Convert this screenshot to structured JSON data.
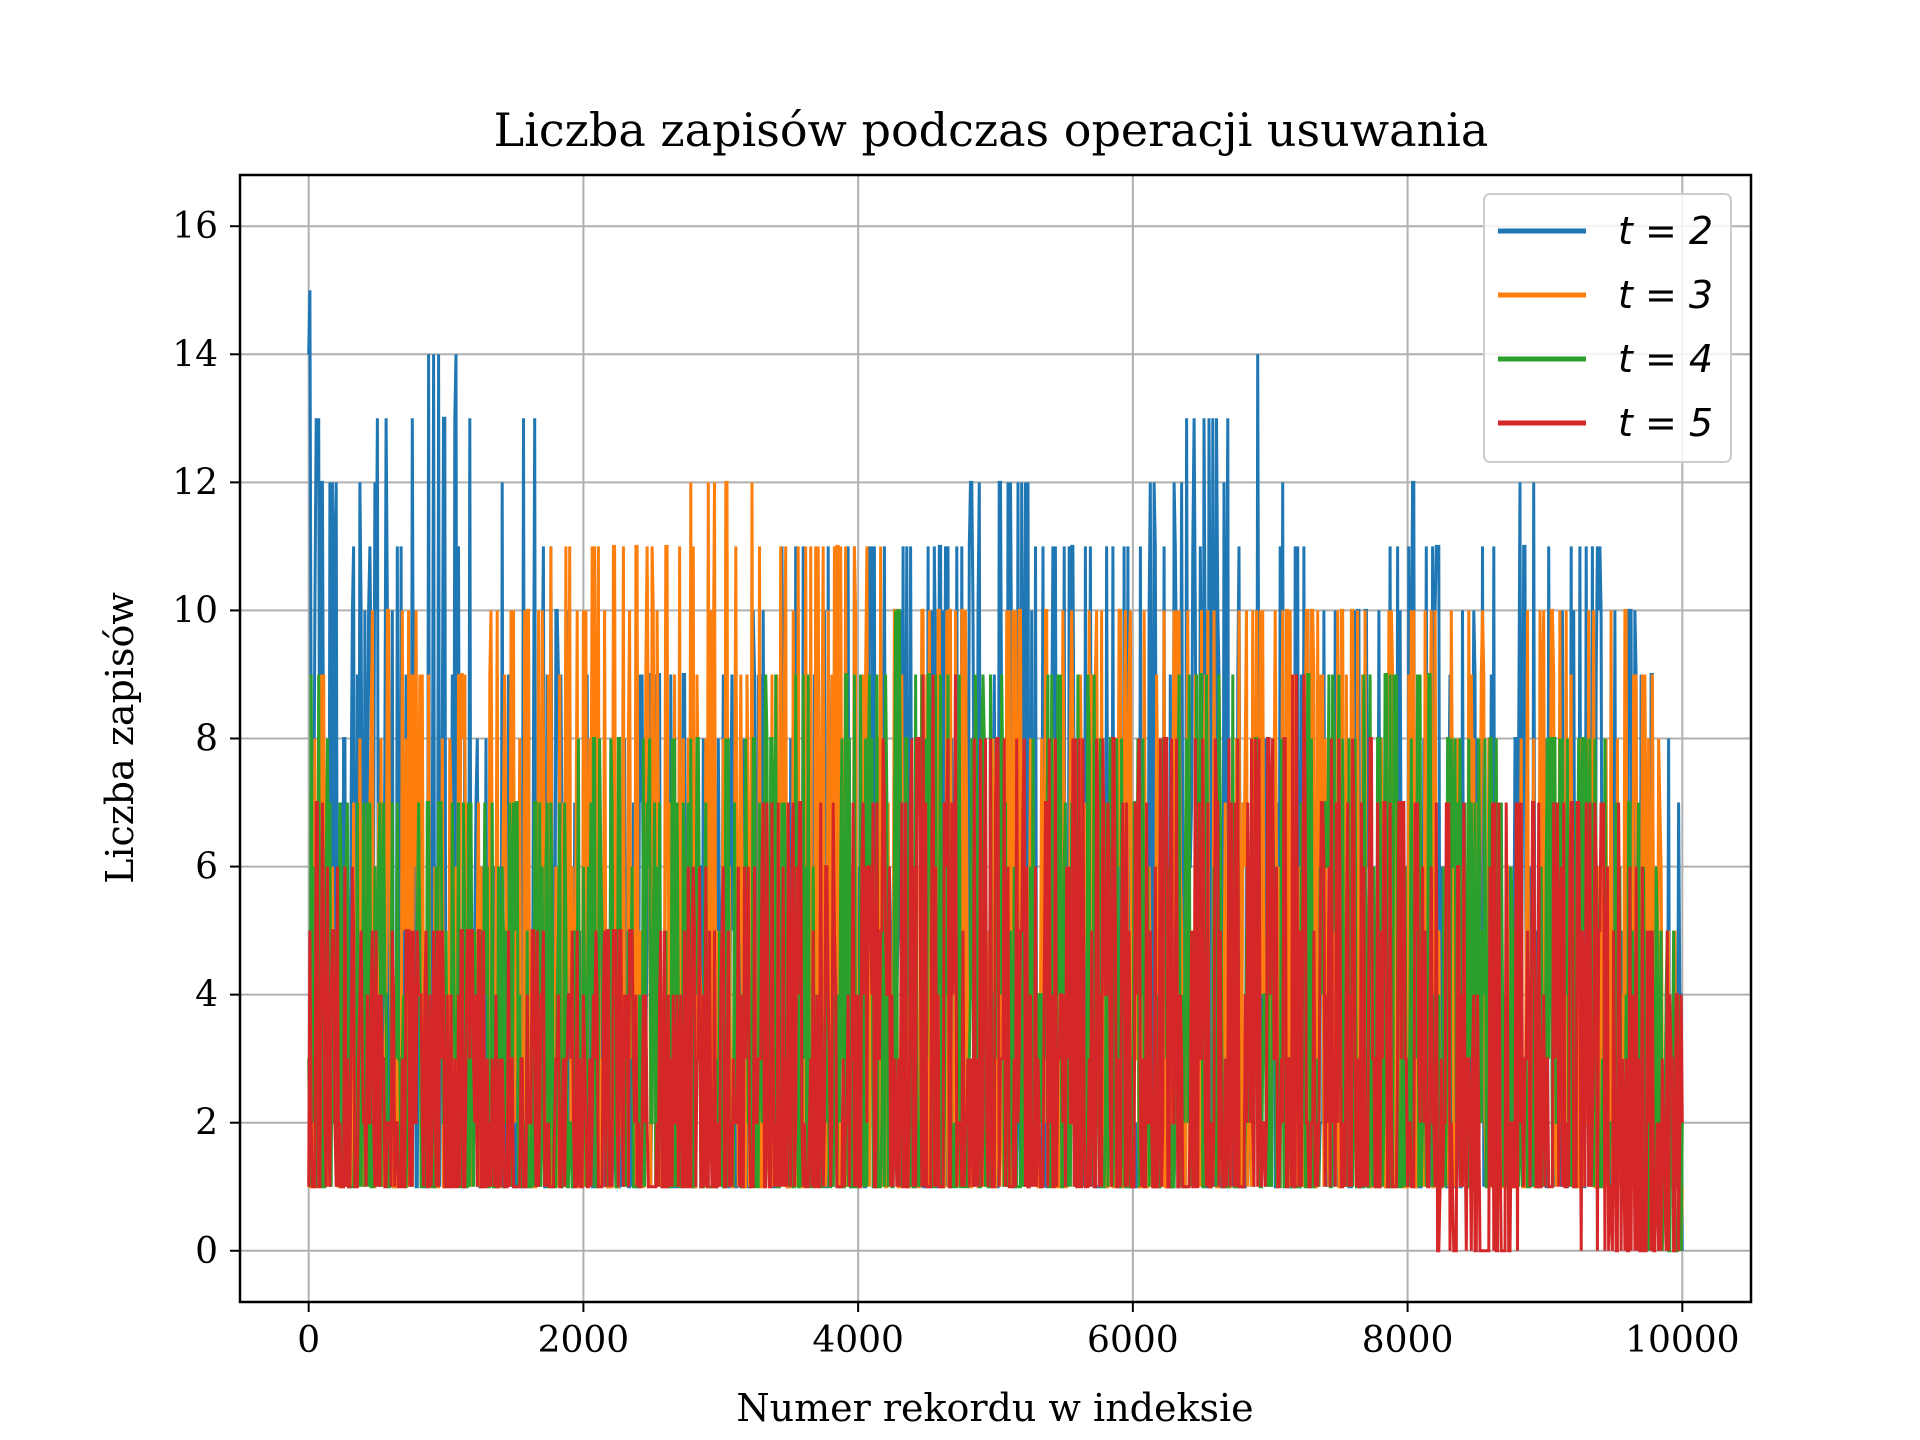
{
  "chart_data": {
    "type": "line",
    "title": "Liczba zapisów podczas operacji usuwania",
    "xlabel": "Numer rekordu w indeksie",
    "ylabel": "Liczba zapisów",
    "xlim": [
      -500,
      10500
    ],
    "ylim": [
      -0.8,
      16.8
    ],
    "xticks": [
      0,
      2000,
      4000,
      6000,
      8000,
      10000
    ],
    "xtick_labels": [
      "0",
      "2000",
      "4000",
      "6000",
      "8000",
      "10000"
    ],
    "yticks": [
      0,
      2,
      4,
      6,
      8,
      10,
      12,
      14,
      16
    ],
    "ytick_labels": [
      "0",
      "2",
      "4",
      "6",
      "8",
      "10",
      "12",
      "14",
      "16"
    ],
    "grid": true,
    "legend_position": "upper right",
    "legend": [
      "t = 2",
      "t = 3",
      "t = 4",
      "t = 5"
    ],
    "series": [
      {
        "name": "t = 2",
        "color": "#1f77b4",
        "x": [
          0,
          20,
          60,
          200,
          400,
          600,
          800,
          900,
          1000,
          1100,
          1300,
          1600,
          2000,
          2500,
          3000,
          3500,
          4000,
          4500,
          5000,
          5500,
          6000,
          6500,
          6900,
          7300,
          7800,
          8000,
          8400,
          8800,
          9200,
          9600,
          9900,
          10000
        ],
        "min": [
          1,
          1,
          1,
          1,
          1,
          1,
          1,
          1,
          1,
          1,
          1,
          1,
          1,
          1,
          1,
          1,
          1,
          1,
          1,
          1,
          1,
          1,
          1,
          1,
          1,
          1,
          1,
          1,
          1,
          1,
          1,
          0
        ],
        "max": [
          14,
          16,
          13,
          12,
          12,
          13,
          13,
          14,
          13,
          14,
          12,
          13,
          9,
          9,
          9,
          11,
          11,
          11,
          12,
          11,
          11,
          13,
          14,
          10,
          10,
          12,
          10,
          12,
          11,
          10,
          8,
          6
        ]
      },
      {
        "name": "t = 3",
        "color": "#ff7f0e",
        "x": [
          0,
          20,
          100,
          300,
          600,
          1000,
          1500,
          2000,
          2500,
          3000,
          3500,
          4000,
          4500,
          5000,
          5500,
          6000,
          6500,
          7000,
          7500,
          8000,
          8500,
          9000,
          9500,
          9900,
          10000
        ],
        "min": [
          1,
          1,
          1,
          1,
          1,
          1,
          1,
          1,
          1,
          1,
          1,
          1,
          1,
          1,
          1,
          1,
          1,
          1,
          1,
          1,
          1,
          1,
          1,
          1,
          0
        ],
        "max": [
          10,
          12,
          9,
          9,
          10,
          9,
          10,
          11,
          11,
          12,
          11,
          11,
          10,
          10,
          10,
          10,
          10,
          10,
          10,
          10,
          10,
          10,
          10,
          8,
          4
        ]
      },
      {
        "name": "t = 4",
        "color": "#2ca02c",
        "x": [
          0,
          20,
          200,
          500,
          1000,
          1500,
          2000,
          2500,
          3000,
          3500,
          4000,
          4300,
          4600,
          5000,
          5500,
          6000,
          6500,
          7000,
          7500,
          8000,
          8500,
          9000,
          9500,
          10000
        ],
        "min": [
          1,
          1,
          1,
          1,
          1,
          1,
          1,
          1,
          1,
          1,
          1,
          1,
          1,
          1,
          1,
          1,
          1,
          1,
          1,
          1,
          1,
          1,
          1,
          0
        ],
        "max": [
          7,
          9,
          8,
          7,
          7,
          7,
          8,
          8,
          8,
          9,
          9,
          10,
          9,
          9,
          9,
          8,
          9,
          8,
          9,
          9,
          8,
          8,
          8,
          4
        ]
      },
      {
        "name": "t = 5",
        "color": "#d62728",
        "x": [
          0,
          20,
          200,
          500,
          1000,
          1500,
          2000,
          2500,
          3000,
          3500,
          4000,
          4600,
          5000,
          5500,
          6000,
          6500,
          7000,
          7250,
          7500,
          8000,
          8400,
          8700,
          9000,
          9500,
          9800,
          10000
        ],
        "min": [
          1,
          1,
          1,
          1,
          1,
          1,
          1,
          1,
          1,
          1,
          1,
          1,
          1,
          1,
          1,
          1,
          1,
          1,
          1,
          1,
          0,
          0,
          1,
          0,
          0,
          0
        ],
        "max": [
          5,
          7,
          6,
          5,
          5,
          5,
          5,
          5,
          6,
          7,
          7,
          9,
          8,
          8,
          8,
          8,
          8,
          9,
          8,
          7,
          7,
          7,
          7,
          7,
          5,
          4
        ]
      }
    ]
  }
}
